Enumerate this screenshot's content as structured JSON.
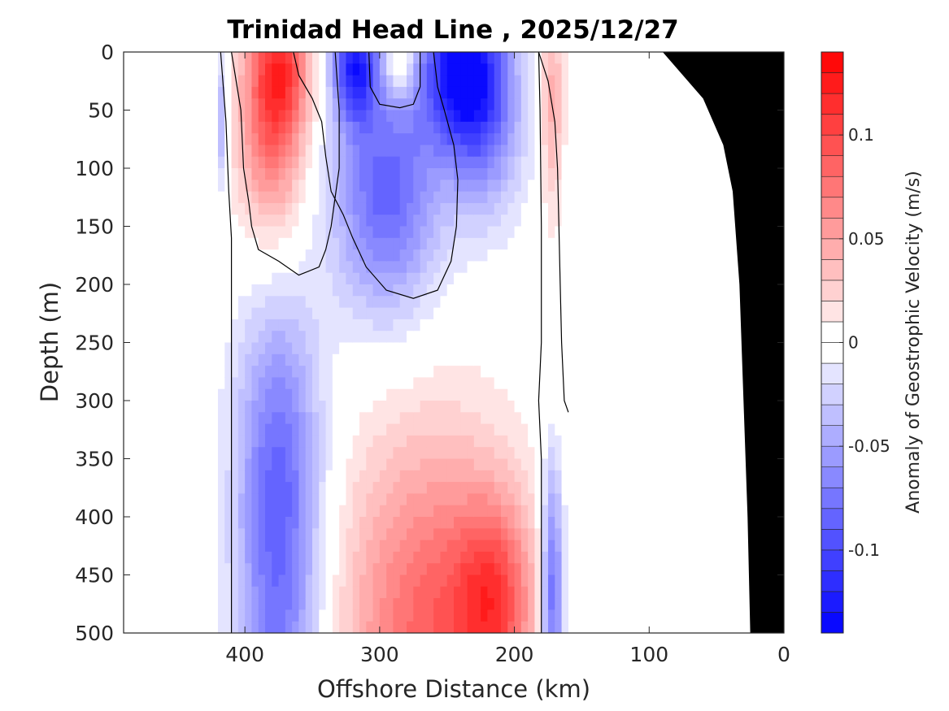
{
  "chart_data": {
    "type": "heatmap",
    "title": "Trinidad Head Line , 2025/12/27",
    "xlabel": "Offshore Distance (km)",
    "ylabel": "Depth (m)",
    "xlim": [
      490,
      0
    ],
    "ylim": [
      0,
      500
    ],
    "x_ticks": [
      400,
      300,
      200,
      100,
      0
    ],
    "x_tick_labels": [
      "400",
      "300",
      "200",
      "100",
      "0"
    ],
    "y_ticks": [
      0,
      50,
      100,
      150,
      200,
      250,
      300,
      350,
      400,
      450,
      500
    ],
    "y_tick_labels": [
      "0",
      "50",
      "100",
      "150",
      "200",
      "250",
      "300",
      "350",
      "400",
      "450",
      "500"
    ],
    "colorbar": {
      "label": "Anomaly of Geostrophic Velocity (m/s)",
      "range": [
        -0.14,
        0.14
      ],
      "step": 0.01,
      "ticks": [
        0.1,
        0.05,
        0,
        -0.05,
        -0.1
      ],
      "tick_labels": [
        "0.1",
        "0.05",
        "0",
        "-0.05",
        "-0.1"
      ]
    },
    "colors": {
      "positive": "#ff0000",
      "negative": "#0000ff",
      "neutral": "#ffffff",
      "seafloor": "#000000",
      "contour": "#000000"
    },
    "data_extent_km": [
      160,
      420
    ],
    "zero_contours": [
      {
        "name": "west-boundary",
        "points": [
          [
            418,
            0
          ],
          [
            414,
            60
          ],
          [
            412,
            120
          ],
          [
            410,
            160
          ],
          [
            410,
            200
          ],
          [
            410,
            300
          ],
          [
            410,
            400
          ],
          [
            410,
            500
          ]
        ]
      },
      {
        "name": "core-a",
        "points": [
          [
            410,
            0
          ],
          [
            403,
            50
          ],
          [
            401,
            100
          ],
          [
            397,
            130
          ],
          [
            395,
            150
          ],
          [
            390,
            170
          ],
          [
            375,
            180
          ],
          [
            360,
            192
          ],
          [
            345,
            185
          ],
          [
            340,
            170
          ],
          [
            336,
            150
          ],
          [
            330,
            100
          ],
          [
            330,
            50
          ],
          [
            333,
            0
          ]
        ]
      },
      {
        "name": "core-b",
        "points": [
          [
            260,
            0
          ],
          [
            257,
            30
          ],
          [
            252,
            50
          ],
          [
            245,
            80
          ],
          [
            242,
            110
          ],
          [
            243,
            150
          ],
          [
            247,
            180
          ],
          [
            257,
            205
          ],
          [
            275,
            212
          ],
          [
            295,
            205
          ],
          [
            310,
            185
          ],
          [
            320,
            160
          ],
          [
            327,
            140
          ],
          [
            336,
            120
          ],
          [
            340,
            90
          ],
          [
            343,
            60
          ],
          [
            350,
            40
          ],
          [
            360,
            20
          ],
          [
            364,
            0
          ]
        ]
      },
      {
        "name": "north-lens",
        "points": [
          [
            308,
            0
          ],
          [
            307,
            30
          ],
          [
            300,
            45
          ],
          [
            285,
            48
          ],
          [
            275,
            45
          ],
          [
            270,
            30
          ],
          [
            270,
            0
          ]
        ]
      },
      {
        "name": "east-boundary",
        "points": [
          [
            182,
            0
          ],
          [
            181,
            50
          ],
          [
            180,
            150
          ],
          [
            180,
            250
          ],
          [
            182,
            300
          ],
          [
            180,
            350
          ],
          [
            180,
            400
          ],
          [
            180,
            450
          ],
          [
            180,
            500
          ]
        ]
      },
      {
        "name": "east-lens",
        "points": [
          [
            182,
            0
          ],
          [
            175,
            25
          ],
          [
            170,
            60
          ],
          [
            168,
            100
          ],
          [
            167,
            150
          ],
          [
            166,
            200
          ],
          [
            165,
            250
          ],
          [
            163,
            300
          ],
          [
            160,
            310
          ]
        ]
      }
    ],
    "features": [
      {
        "label": "northward core",
        "center_km": 380,
        "center_depth_m": 50,
        "value": 0.09
      },
      {
        "label": "southward core",
        "center_km": 290,
        "center_depth_m": 120,
        "value": -0.08
      },
      {
        "label": "southward core",
        "center_km": 240,
        "center_depth_m": 10,
        "value": -0.12
      },
      {
        "label": "deep northward",
        "center_km": 270,
        "center_depth_m": 500,
        "value": 0.08
      },
      {
        "label": "deep southward",
        "center_km": 375,
        "center_depth_m": 480,
        "value": -0.07
      }
    ],
    "bathymetry": [
      [
        0,
        0
      ],
      [
        0,
        500
      ],
      [
        25,
        500
      ],
      [
        27,
        400
      ],
      [
        30,
        300
      ],
      [
        33,
        200
      ],
      [
        38,
        120
      ],
      [
        45,
        80
      ],
      [
        60,
        40
      ],
      [
        90,
        0
      ]
    ]
  }
}
